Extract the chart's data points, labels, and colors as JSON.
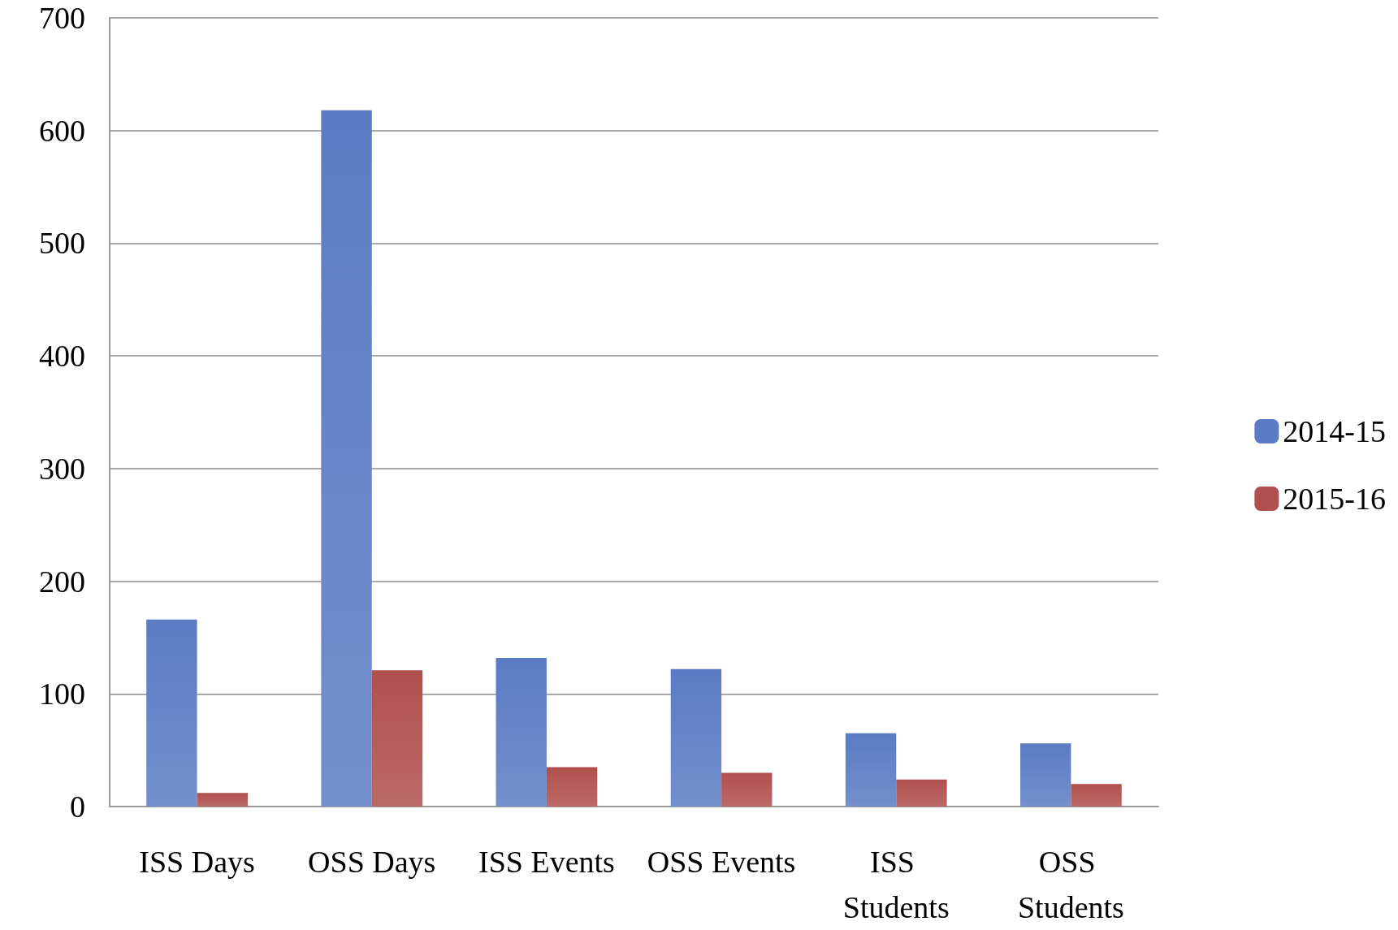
{
  "chart_data": {
    "type": "bar",
    "categories": [
      "ISS Days",
      "OSS Days",
      "ISS Events",
      "OSS Events",
      "ISS Students",
      "OSS Students"
    ],
    "series": [
      {
        "name": "2014-15",
        "color": "#5b7cc4",
        "values": [
          166,
          618,
          132,
          122,
          65,
          56
        ]
      },
      {
        "name": "2015-16",
        "color": "#b0504e",
        "values": [
          12,
          121,
          35,
          30,
          24,
          20
        ]
      }
    ],
    "ylim": [
      0,
      700
    ],
    "yticks": [
      0,
      100,
      200,
      300,
      400,
      500,
      600,
      700
    ],
    "grid": "y",
    "legend": "right"
  }
}
